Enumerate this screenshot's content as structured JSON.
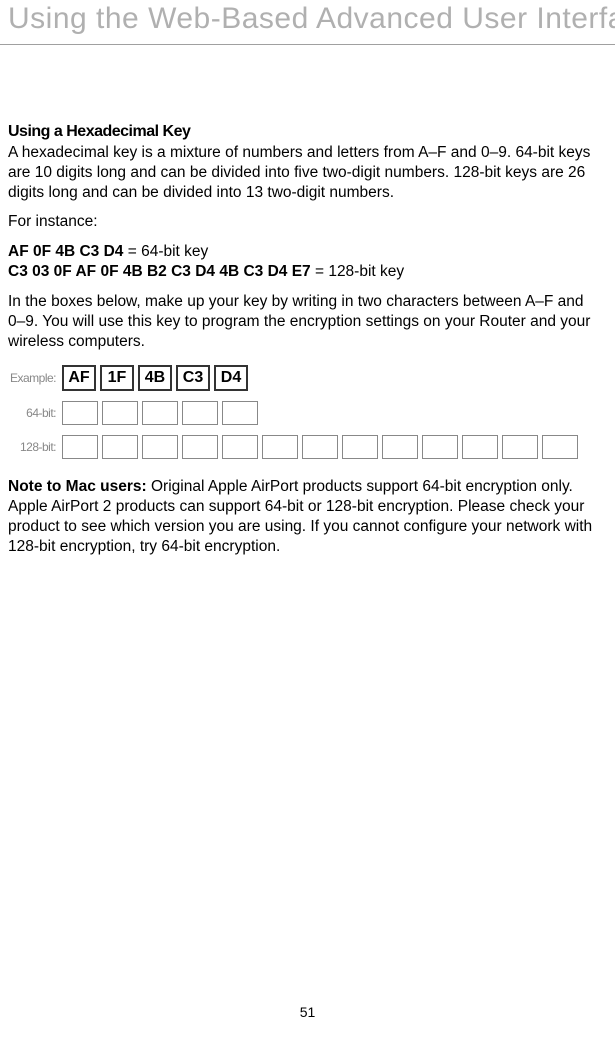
{
  "page": {
    "header": "Using the Web-Based Advanced User Interface",
    "number": "51"
  },
  "section": {
    "heading": "Using a Hexadecimal Key",
    "para1": "A hexadecimal key is a mixture of numbers and letters from A–F and 0–9. 64-bit keys are 10 digits long and can be divided into five two-digit numbers. 128-bit keys are 26 digits long and can be divided into 13 two-digit numbers.",
    "for_instance": "For instance:",
    "key64_example": "AF 0F 4B C3 D4",
    "key64_suffix": " = 64-bit key",
    "key128_example": "C3 03 0F AF 0F 4B B2 C3 D4 4B C3 D4 E7",
    "key128_suffix": " = 128-bit key",
    "para2": "In the boxes below, make up your key by writing in two characters between A–F and 0–9. You will use this key to program the encryption settings on your Router and your wireless computers."
  },
  "figure": {
    "example_label": "Example:",
    "example_values": [
      "AF",
      "1F",
      "4B",
      "C3",
      "D4"
    ],
    "row64_label": "64-bit:",
    "row64_count": 5,
    "row128_label": "128-bit:",
    "row128_count": 13
  },
  "note": {
    "lead": "Note to Mac users: ",
    "text": "Original Apple AirPort products support 64-bit encryption only. Apple AirPort 2 products can support 64-bit or 128-bit encryption. Please check your product to see which version you are using. If you cannot configure your network with 128-bit encryption, try 64-bit encryption."
  },
  "styling": {
    "header_color": "#b0b0b0",
    "header_fontsize": 30,
    "body_fontsize": 15.5,
    "heading_fontsize": 16,
    "background": "#ffffff",
    "text_color": "#000000",
    "box_border": "#333333",
    "box_border_light": "#888888",
    "label_color": "#888888"
  }
}
